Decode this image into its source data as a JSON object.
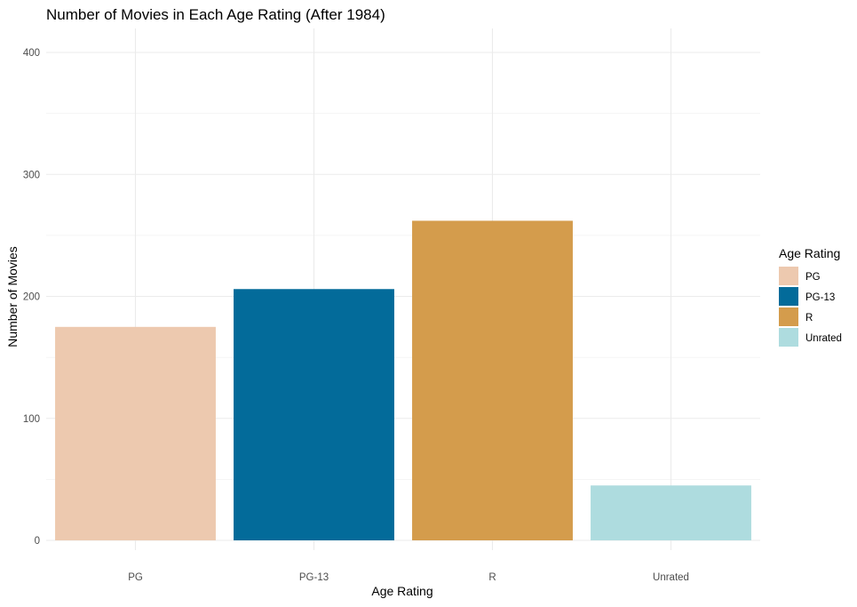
{
  "chart_data": {
    "type": "bar",
    "title": "Number of Movies in Each Age Rating (After 1984)",
    "xlabel": "Age Rating",
    "ylabel": "Number of Movies",
    "categories": [
      "PG",
      "PG-13",
      "R",
      "Unrated"
    ],
    "values": [
      175,
      206,
      262,
      45
    ],
    "colors": [
      "#edc9af",
      "#036b9a",
      "#d49c4c",
      "#aedcdf"
    ],
    "ylim": [
      0,
      420
    ],
    "yticks": [
      0,
      100,
      200,
      300,
      400
    ],
    "grid": true,
    "legend": {
      "title": "Age Rating",
      "position": "right",
      "entries": [
        "PG",
        "PG-13",
        "R",
        "Unrated"
      ]
    }
  }
}
